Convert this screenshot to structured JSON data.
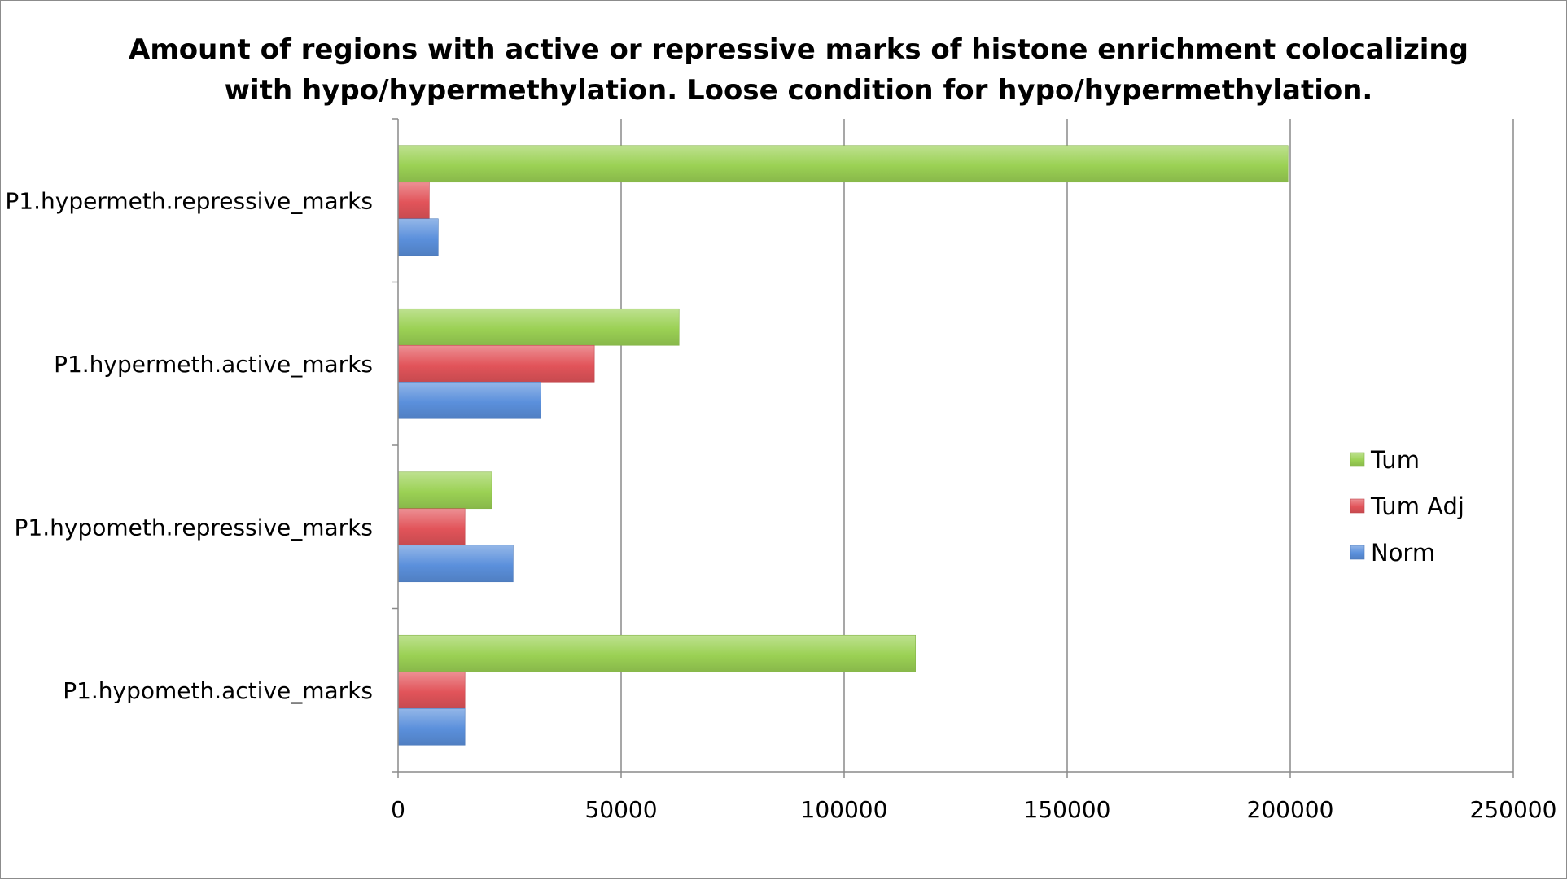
{
  "chart_data": {
    "type": "bar",
    "orientation": "horizontal",
    "title_lines": [
      "Amount of regions with active or repressive marks of histone enrichment colocalizing",
      "with hypo/hypermethylation. Loose condition for hypo/hypermethylation."
    ],
    "categories": [
      "P1.hypermeth.repressive_marks",
      "P1.hypermeth.active_marks",
      "P1.hypometh.repressive_marks",
      "P1.hypometh.active_marks"
    ],
    "series": [
      {
        "name": "Tum",
        "color": "#9bd154",
        "values": [
          199500,
          63000,
          21000,
          116000
        ]
      },
      {
        "name": "Tum Adj",
        "color": "#e2545a",
        "values": [
          7000,
          44000,
          15000,
          15000
        ]
      },
      {
        "name": "Norm",
        "color": "#5b90dc",
        "values": [
          9000,
          32000,
          25800,
          15000
        ]
      }
    ],
    "xlim": [
      0,
      250000
    ],
    "xticks": [
      "0",
      "50000",
      "100000",
      "150000",
      "200000",
      "250000"
    ],
    "xtick_values": [
      0,
      50000,
      100000,
      150000,
      200000,
      250000
    ],
    "grid": "vertical-major",
    "legend_position": "right"
  }
}
